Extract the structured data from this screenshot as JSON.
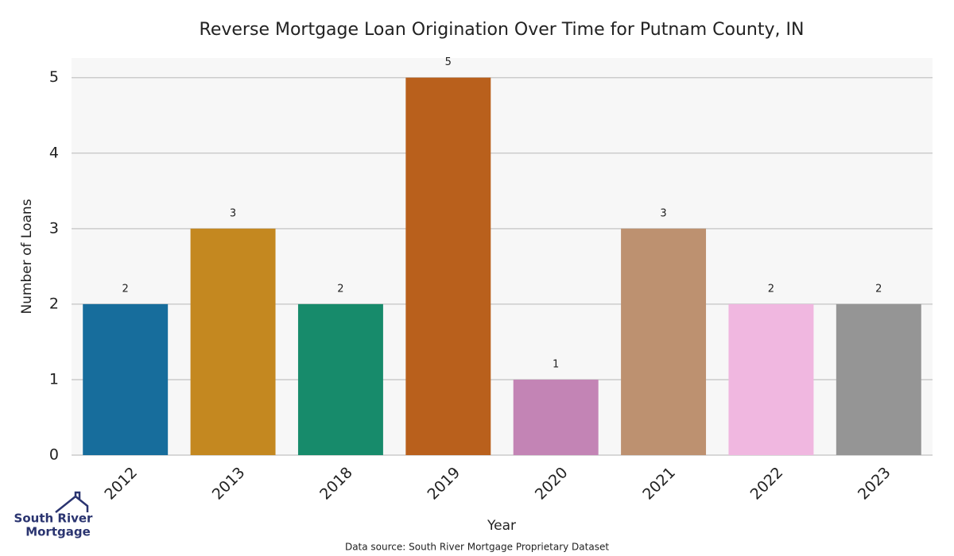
{
  "chart_data": {
    "type": "bar",
    "title": "Reverse Mortgage Loan Origination Over Time for Putnam County, IN",
    "x_label": "Year",
    "y_label": "Number of Loans",
    "categories": [
      "2012",
      "2013",
      "2018",
      "2019",
      "2020",
      "2021",
      "2022",
      "2023"
    ],
    "values": [
      2,
      3,
      2,
      5,
      1,
      3,
      2,
      2
    ],
    "colors": [
      "#176d9c",
      "#c48820",
      "#178b6b",
      "#b9601c",
      "#c384b5",
      "#bd9170",
      "#f0b7e0",
      "#959595"
    ],
    "ylim": [
      0,
      5.26
    ],
    "yticks": [
      0,
      1,
      2,
      3,
      4,
      5
    ],
    "grid": true,
    "source": "Data source: South River Mortgage Proprietary Dataset"
  },
  "logo": {
    "line1": "South River",
    "line2": "Mortgage"
  }
}
